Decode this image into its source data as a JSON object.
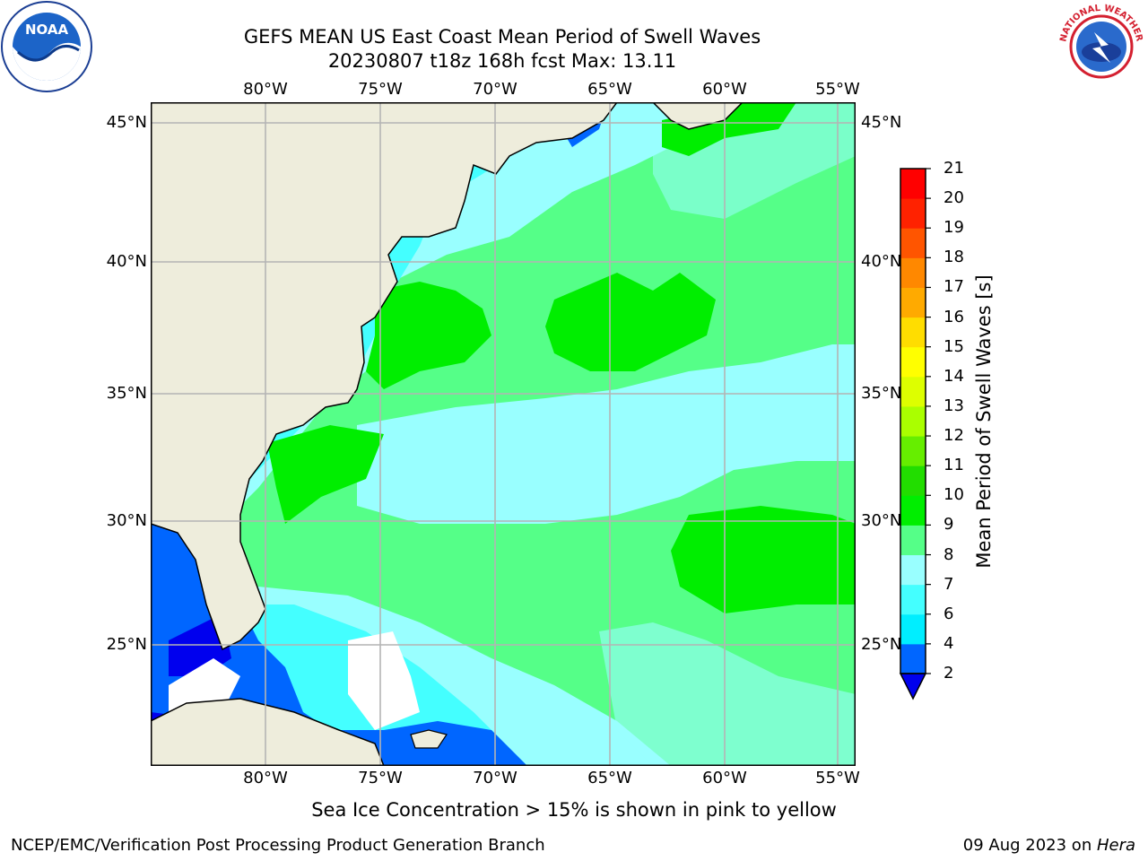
{
  "header": {
    "title_line1": "GEFS MEAN US East Coast Mean Period of Swell Waves",
    "title_line2": "20230807 t18z 168h fcst   Max: 13.11"
  },
  "logos": {
    "left": {
      "icon": "noaa-logo-icon",
      "text": "NOAA"
    },
    "right": {
      "icon": "nws-logo-icon",
      "text": "NATIONAL WEATHER SERVICE"
    }
  },
  "map": {
    "longitude_labels": [
      "80°W",
      "75°W",
      "70°W",
      "65°W",
      "60°W",
      "55°W"
    ],
    "latitude_labels": [
      "45°N",
      "40°N",
      "35°N",
      "30°N",
      "25°N"
    ],
    "land_color": "#eeeddc",
    "grid_color": "#b4b4b4"
  },
  "colorbar": {
    "label": "Mean Period of Swell Waves [s]",
    "ticks": [
      "2",
      "4",
      "6",
      "7",
      "8",
      "9",
      "10",
      "11",
      "12",
      "13",
      "14",
      "15",
      "16",
      "17",
      "18",
      "19",
      "20",
      "21"
    ],
    "colors": [
      "#0066ff",
      "#00eeff",
      "#44ffff",
      "#99ffff",
      "#55ff88",
      "#00ee00",
      "#22dd00",
      "#66ee00",
      "#aaff00",
      "#ddff00",
      "#ffff00",
      "#ffdd00",
      "#ffaa00",
      "#ff8800",
      "#ff5500",
      "#ff2200",
      "#ff0000"
    ],
    "under_color": "#0000ee"
  },
  "footer": {
    "note": "Sea Ice Concentration > 15% is shown in pink to yellow",
    "credit": "NCEP/EMC/Verification Post Processing Product Generation Branch",
    "date_prefix": "09 Aug 2023 on ",
    "date_machine": "Hera"
  }
}
